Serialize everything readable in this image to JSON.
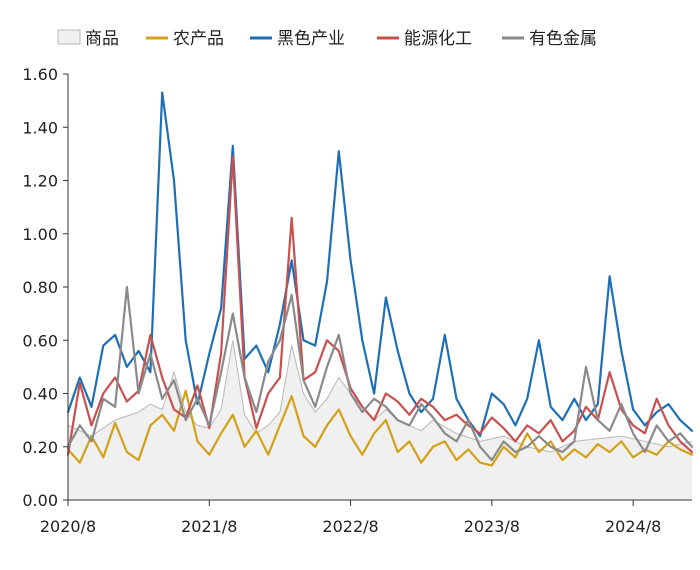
{
  "chart_data": {
    "type": "line",
    "title": "",
    "xlabel": "",
    "ylabel": "",
    "x_range": [
      "2020-08",
      "2025-01"
    ],
    "x_ticks": [
      "2020/8",
      "2021/8",
      "2022/8",
      "2023/8",
      "2024/8"
    ],
    "ylim": [
      0,
      1.6
    ],
    "y_ticks": [
      "0.00",
      "0.20",
      "0.40",
      "0.60",
      "0.80",
      "1.00",
      "1.20",
      "1.40",
      "1.60"
    ],
    "grid": false,
    "legend_position": "top",
    "series": [
      {
        "name": "商品",
        "style": "area",
        "color": "#f0f0f0",
        "stroke": "#b8b8b8",
        "points": [
          [
            "2020-08",
            0.28
          ],
          [
            "2020-10",
            0.24
          ],
          [
            "2020-12",
            0.3
          ],
          [
            "2021-02",
            0.33
          ],
          [
            "2021-03",
            0.36
          ],
          [
            "2021-04",
            0.34
          ],
          [
            "2021-05",
            0.48
          ],
          [
            "2021-06",
            0.33
          ],
          [
            "2021-07",
            0.28
          ],
          [
            "2021-08",
            0.27
          ],
          [
            "2021-09",
            0.34
          ],
          [
            "2021-10",
            0.6
          ],
          [
            "2021-11",
            0.32
          ],
          [
            "2021-12",
            0.25
          ],
          [
            "2022-01",
            0.28
          ],
          [
            "2022-02",
            0.33
          ],
          [
            "2022-03",
            0.58
          ],
          [
            "2022-04",
            0.4
          ],
          [
            "2022-05",
            0.33
          ],
          [
            "2022-06",
            0.38
          ],
          [
            "2022-07",
            0.46
          ],
          [
            "2022-08",
            0.4
          ],
          [
            "2022-09",
            0.35
          ],
          [
            "2022-10",
            0.3
          ],
          [
            "2022-11",
            0.34
          ],
          [
            "2022-12",
            0.3
          ],
          [
            "2023-02",
            0.26
          ],
          [
            "2023-03",
            0.3
          ],
          [
            "2023-05",
            0.25
          ],
          [
            "2023-07",
            0.22
          ],
          [
            "2023-09",
            0.24
          ],
          [
            "2023-11",
            0.2
          ],
          [
            "2024-01",
            0.18
          ],
          [
            "2024-03",
            0.22
          ],
          [
            "2024-05",
            0.23
          ],
          [
            "2024-07",
            0.24
          ],
          [
            "2024-09",
            0.22
          ],
          [
            "2024-11",
            0.2
          ],
          [
            "2025-01",
            0.22
          ]
        ]
      },
      {
        "name": "农产品",
        "style": "line",
        "color": "#d4a017",
        "points": [
          [
            "2020-08",
            0.19
          ],
          [
            "2020-09",
            0.14
          ],
          [
            "2020-10",
            0.24
          ],
          [
            "2020-11",
            0.16
          ],
          [
            "2020-12",
            0.29
          ],
          [
            "2021-01",
            0.18
          ],
          [
            "2021-02",
            0.15
          ],
          [
            "2021-03",
            0.28
          ],
          [
            "2021-04",
            0.32
          ],
          [
            "2021-05",
            0.26
          ],
          [
            "2021-06",
            0.41
          ],
          [
            "2021-07",
            0.22
          ],
          [
            "2021-08",
            0.17
          ],
          [
            "2021-09",
            0.25
          ],
          [
            "2021-10",
            0.32
          ],
          [
            "2021-11",
            0.2
          ],
          [
            "2021-12",
            0.26
          ],
          [
            "2022-01",
            0.17
          ],
          [
            "2022-02",
            0.28
          ],
          [
            "2022-03",
            0.39
          ],
          [
            "2022-04",
            0.24
          ],
          [
            "2022-05",
            0.2
          ],
          [
            "2022-06",
            0.28
          ],
          [
            "2022-07",
            0.34
          ],
          [
            "2022-08",
            0.24
          ],
          [
            "2022-09",
            0.17
          ],
          [
            "2022-10",
            0.25
          ],
          [
            "2022-11",
            0.3
          ],
          [
            "2022-12",
            0.18
          ],
          [
            "2023-01",
            0.22
          ],
          [
            "2023-02",
            0.14
          ],
          [
            "2023-03",
            0.2
          ],
          [
            "2023-04",
            0.22
          ],
          [
            "2023-05",
            0.15
          ],
          [
            "2023-06",
            0.19
          ],
          [
            "2023-07",
            0.14
          ],
          [
            "2023-08",
            0.13
          ],
          [
            "2023-09",
            0.2
          ],
          [
            "2023-10",
            0.16
          ],
          [
            "2023-11",
            0.25
          ],
          [
            "2023-12",
            0.18
          ],
          [
            "2024-01",
            0.22
          ],
          [
            "2024-02",
            0.15
          ],
          [
            "2024-03",
            0.19
          ],
          [
            "2024-04",
            0.16
          ],
          [
            "2024-05",
            0.21
          ],
          [
            "2024-06",
            0.18
          ],
          [
            "2024-07",
            0.22
          ],
          [
            "2024-08",
            0.16
          ],
          [
            "2024-09",
            0.19
          ],
          [
            "2024-10",
            0.17
          ],
          [
            "2024-11",
            0.22
          ],
          [
            "2024-12",
            0.19
          ],
          [
            "2025-01",
            0.17
          ]
        ]
      },
      {
        "name": "黑色产业",
        "style": "line",
        "color": "#1f6fb7",
        "points": [
          [
            "2020-08",
            0.33
          ],
          [
            "2020-09",
            0.46
          ],
          [
            "2020-10",
            0.35
          ],
          [
            "2020-11",
            0.58
          ],
          [
            "2020-12",
            0.62
          ],
          [
            "2021-01",
            0.5
          ],
          [
            "2021-02",
            0.56
          ],
          [
            "2021-03",
            0.48
          ],
          [
            "2021-04",
            1.53
          ],
          [
            "2021-05",
            1.2
          ],
          [
            "2021-06",
            0.6
          ],
          [
            "2021-07",
            0.36
          ],
          [
            "2021-08",
            0.55
          ],
          [
            "2021-09",
            0.72
          ],
          [
            "2021-10",
            1.33
          ],
          [
            "2021-11",
            0.53
          ],
          [
            "2021-12",
            0.58
          ],
          [
            "2022-01",
            0.48
          ],
          [
            "2022-02",
            0.66
          ],
          [
            "2022-03",
            0.9
          ],
          [
            "2022-04",
            0.6
          ],
          [
            "2022-05",
            0.58
          ],
          [
            "2022-06",
            0.82
          ],
          [
            "2022-07",
            1.31
          ],
          [
            "2022-08",
            0.9
          ],
          [
            "2022-09",
            0.6
          ],
          [
            "2022-10",
            0.4
          ],
          [
            "2022-11",
            0.76
          ],
          [
            "2022-12",
            0.56
          ],
          [
            "2023-01",
            0.4
          ],
          [
            "2023-02",
            0.33
          ],
          [
            "2023-03",
            0.38
          ],
          [
            "2023-04",
            0.62
          ],
          [
            "2023-05",
            0.38
          ],
          [
            "2023-06",
            0.3
          ],
          [
            "2023-07",
            0.24
          ],
          [
            "2023-08",
            0.4
          ],
          [
            "2023-09",
            0.36
          ],
          [
            "2023-10",
            0.28
          ],
          [
            "2023-11",
            0.38
          ],
          [
            "2023-12",
            0.6
          ],
          [
            "2024-01",
            0.35
          ],
          [
            "2024-02",
            0.3
          ],
          [
            "2024-03",
            0.38
          ],
          [
            "2024-04",
            0.3
          ],
          [
            "2024-05",
            0.36
          ],
          [
            "2024-06",
            0.84
          ],
          [
            "2024-07",
            0.56
          ],
          [
            "2024-08",
            0.34
          ],
          [
            "2024-09",
            0.28
          ],
          [
            "2024-10",
            0.33
          ],
          [
            "2024-11",
            0.36
          ],
          [
            "2024-12",
            0.3
          ],
          [
            "2025-01",
            0.26
          ]
        ]
      },
      {
        "name": "能源化工",
        "style": "line",
        "color": "#c8504f",
        "points": [
          [
            "2020-08",
            0.17
          ],
          [
            "2020-09",
            0.44
          ],
          [
            "2020-10",
            0.28
          ],
          [
            "2020-11",
            0.4
          ],
          [
            "2020-12",
            0.46
          ],
          [
            "2021-01",
            0.37
          ],
          [
            "2021-02",
            0.41
          ],
          [
            "2021-03",
            0.62
          ],
          [
            "2021-04",
            0.46
          ],
          [
            "2021-05",
            0.34
          ],
          [
            "2021-06",
            0.31
          ],
          [
            "2021-07",
            0.43
          ],
          [
            "2021-08",
            0.27
          ],
          [
            "2021-09",
            0.55
          ],
          [
            "2021-10",
            1.29
          ],
          [
            "2021-11",
            0.46
          ],
          [
            "2021-12",
            0.27
          ],
          [
            "2022-01",
            0.4
          ],
          [
            "2022-02",
            0.46
          ],
          [
            "2022-03",
            1.06
          ],
          [
            "2022-04",
            0.45
          ],
          [
            "2022-05",
            0.48
          ],
          [
            "2022-06",
            0.6
          ],
          [
            "2022-07",
            0.56
          ],
          [
            "2022-08",
            0.42
          ],
          [
            "2022-09",
            0.35
          ],
          [
            "2022-10",
            0.3
          ],
          [
            "2022-11",
            0.4
          ],
          [
            "2022-12",
            0.37
          ],
          [
            "2023-01",
            0.32
          ],
          [
            "2023-02",
            0.38
          ],
          [
            "2023-03",
            0.35
          ],
          [
            "2023-04",
            0.3
          ],
          [
            "2023-05",
            0.32
          ],
          [
            "2023-06",
            0.28
          ],
          [
            "2023-07",
            0.25
          ],
          [
            "2023-08",
            0.31
          ],
          [
            "2023-09",
            0.27
          ],
          [
            "2023-10",
            0.22
          ],
          [
            "2023-11",
            0.28
          ],
          [
            "2023-12",
            0.25
          ],
          [
            "2024-01",
            0.3
          ],
          [
            "2024-02",
            0.22
          ],
          [
            "2024-03",
            0.26
          ],
          [
            "2024-04",
            0.35
          ],
          [
            "2024-05",
            0.3
          ],
          [
            "2024-06",
            0.48
          ],
          [
            "2024-07",
            0.34
          ],
          [
            "2024-08",
            0.28
          ],
          [
            "2024-09",
            0.25
          ],
          [
            "2024-10",
            0.38
          ],
          [
            "2024-11",
            0.28
          ],
          [
            "2024-12",
            0.22
          ],
          [
            "2025-01",
            0.18
          ]
        ]
      },
      {
        "name": "有色金属",
        "style": "line",
        "color": "#8a8a8a",
        "points": [
          [
            "2020-08",
            0.2
          ],
          [
            "2020-09",
            0.28
          ],
          [
            "2020-10",
            0.22
          ],
          [
            "2020-11",
            0.38
          ],
          [
            "2020-12",
            0.35
          ],
          [
            "2021-01",
            0.8
          ],
          [
            "2021-02",
            0.4
          ],
          [
            "2021-03",
            0.55
          ],
          [
            "2021-04",
            0.38
          ],
          [
            "2021-05",
            0.45
          ],
          [
            "2021-06",
            0.3
          ],
          [
            "2021-07",
            0.38
          ],
          [
            "2021-08",
            0.28
          ],
          [
            "2021-09",
            0.48
          ],
          [
            "2021-10",
            0.7
          ],
          [
            "2021-11",
            0.46
          ],
          [
            "2021-12",
            0.33
          ],
          [
            "2022-01",
            0.52
          ],
          [
            "2022-02",
            0.6
          ],
          [
            "2022-03",
            0.77
          ],
          [
            "2022-04",
            0.45
          ],
          [
            "2022-05",
            0.35
          ],
          [
            "2022-06",
            0.5
          ],
          [
            "2022-07",
            0.62
          ],
          [
            "2022-08",
            0.4
          ],
          [
            "2022-09",
            0.33
          ],
          [
            "2022-10",
            0.38
          ],
          [
            "2022-11",
            0.35
          ],
          [
            "2022-12",
            0.3
          ],
          [
            "2023-01",
            0.28
          ],
          [
            "2023-02",
            0.36
          ],
          [
            "2023-03",
            0.31
          ],
          [
            "2023-04",
            0.25
          ],
          [
            "2023-05",
            0.22
          ],
          [
            "2023-06",
            0.3
          ],
          [
            "2023-07",
            0.2
          ],
          [
            "2023-08",
            0.15
          ],
          [
            "2023-09",
            0.22
          ],
          [
            "2023-10",
            0.18
          ],
          [
            "2023-11",
            0.2
          ],
          [
            "2023-12",
            0.24
          ],
          [
            "2024-01",
            0.2
          ],
          [
            "2024-02",
            0.18
          ],
          [
            "2024-03",
            0.22
          ],
          [
            "2024-04",
            0.5
          ],
          [
            "2024-05",
            0.3
          ],
          [
            "2024-06",
            0.26
          ],
          [
            "2024-07",
            0.36
          ],
          [
            "2024-08",
            0.25
          ],
          [
            "2024-09",
            0.18
          ],
          [
            "2024-10",
            0.28
          ],
          [
            "2024-11",
            0.22
          ],
          [
            "2024-12",
            0.25
          ],
          [
            "2025-01",
            0.2
          ]
        ]
      }
    ]
  }
}
